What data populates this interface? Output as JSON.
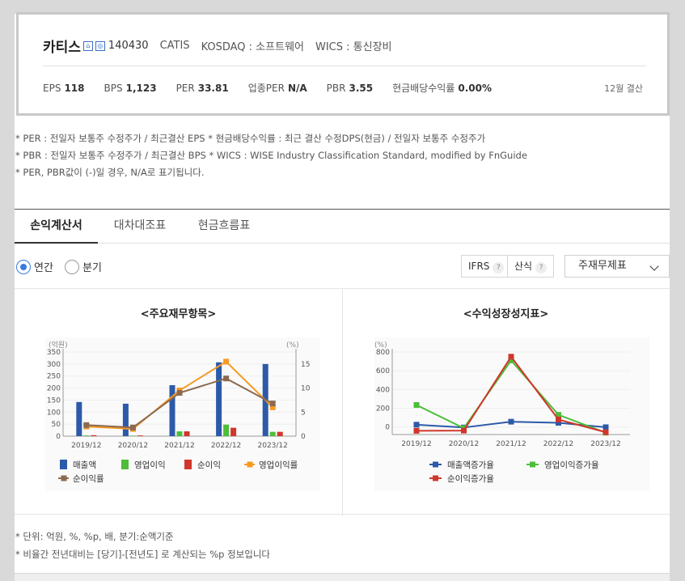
{
  "company": {
    "name": "카티스",
    "code": "140430",
    "english": "CATIS",
    "market": "KOSDAQ : 소프트웨어",
    "wics": "WICS : 통신장비"
  },
  "metrics": {
    "eps_label": "EPS",
    "eps_value": "118",
    "bps_label": "BPS",
    "bps_value": "1,123",
    "per_label": "PER",
    "per_value": "33.81",
    "ind_per_label": "업종PER",
    "ind_per_value": "N/A",
    "pbr_label": "PBR",
    "pbr_value": "3.55",
    "div_label": "현금배당수익률",
    "div_value": "0.00%",
    "settlement": "12월 결산"
  },
  "notes": [
    "* PER : 전일자 보통주 수정주가 / 최근결산 EPS * 현금배당수익률 : 최근 결산 수정DPS(현금) / 전일자 보통주 수정주가",
    "* PBR : 전일자 보통주 수정주가 / 최근결산 BPS * WICS : WISE Industry Classification Standard, modified by FnGuide",
    "* PER, PBR값이 (-)일 경우, N/A로 표기됩니다."
  ],
  "tabs": [
    "손익계산서",
    "대차대조표",
    "현금흐름표"
  ],
  "controls": {
    "annual": "연간",
    "quarter": "분기",
    "ifrs": "IFRS",
    "ifrs_q": "?",
    "calc": "산식",
    "calc_q": "?",
    "select": "주재무제표"
  },
  "footnotes": [
    "* 단위: 억원, %, %p, 배, 분기:순액기준",
    "* 비율간 전년대비는 [당기]-[전년도] 로 계산되는 %p 정보입니다"
  ],
  "chart_data": [
    {
      "type": "bar",
      "title": "<주요재무항목>",
      "left_unit": "(억원)",
      "right_unit": "(%)",
      "categories": [
        "2019/12",
        "2020/12",
        "2021/12",
        "2022/12",
        "2023/12"
      ],
      "ylim": [
        0,
        350
      ],
      "yticks": [
        0,
        50,
        100,
        150,
        200,
        250,
        300,
        350
      ],
      "y2lim": [
        0,
        17.5
      ],
      "y2ticks": [
        0,
        5,
        10,
        15
      ],
      "series": [
        {
          "name": "매출액",
          "kind": "bar",
          "axis": "left",
          "color": "#2c5aa8",
          "values": [
            142,
            135,
            212,
            307,
            300
          ]
        },
        {
          "name": "영업이익",
          "kind": "bar",
          "axis": "left",
          "color": "#4dbd3a",
          "values": [
            3,
            2,
            20,
            48,
            18
          ]
        },
        {
          "name": "순이익",
          "kind": "bar",
          "axis": "left",
          "color": "#d0362b",
          "values": [
            4,
            3,
            20,
            35,
            18
          ]
        },
        {
          "name": "영업이익률",
          "kind": "line",
          "axis": "right",
          "color": "#f59a23",
          "marker": "square",
          "values": [
            2.0,
            1.5,
            9.5,
            15.5,
            6.0
          ]
        },
        {
          "name": "순이익률",
          "kind": "line",
          "axis": "right",
          "color": "#8c6a4f",
          "marker": "square",
          "values": [
            2.3,
            1.8,
            9.0,
            12.0,
            6.8
          ]
        }
      ],
      "legend_position": "bottom"
    },
    {
      "type": "line",
      "title": "<수익성장성지표>",
      "left_unit": "(%)",
      "categories": [
        "2019/12",
        "2020/12",
        "2021/12",
        "2022/12",
        "2023/12"
      ],
      "ylim": [
        -80,
        800
      ],
      "yticks": [
        0,
        200,
        400,
        600,
        800
      ],
      "series": [
        {
          "name": "매출액증가율",
          "color": "#2c5aa8",
          "marker": "square",
          "values": [
            25,
            -5,
            57,
            45,
            -2
          ]
        },
        {
          "name": "영업이익증가율",
          "color": "#4dbd3a",
          "marker": "square",
          "values": [
            235,
            -12,
            710,
            130,
            -60
          ]
        },
        {
          "name": "순이익증가율",
          "color": "#d0362b",
          "marker": "square",
          "values": [
            -40,
            -38,
            750,
            80,
            -55
          ]
        }
      ],
      "legend_position": "bottom"
    }
  ]
}
